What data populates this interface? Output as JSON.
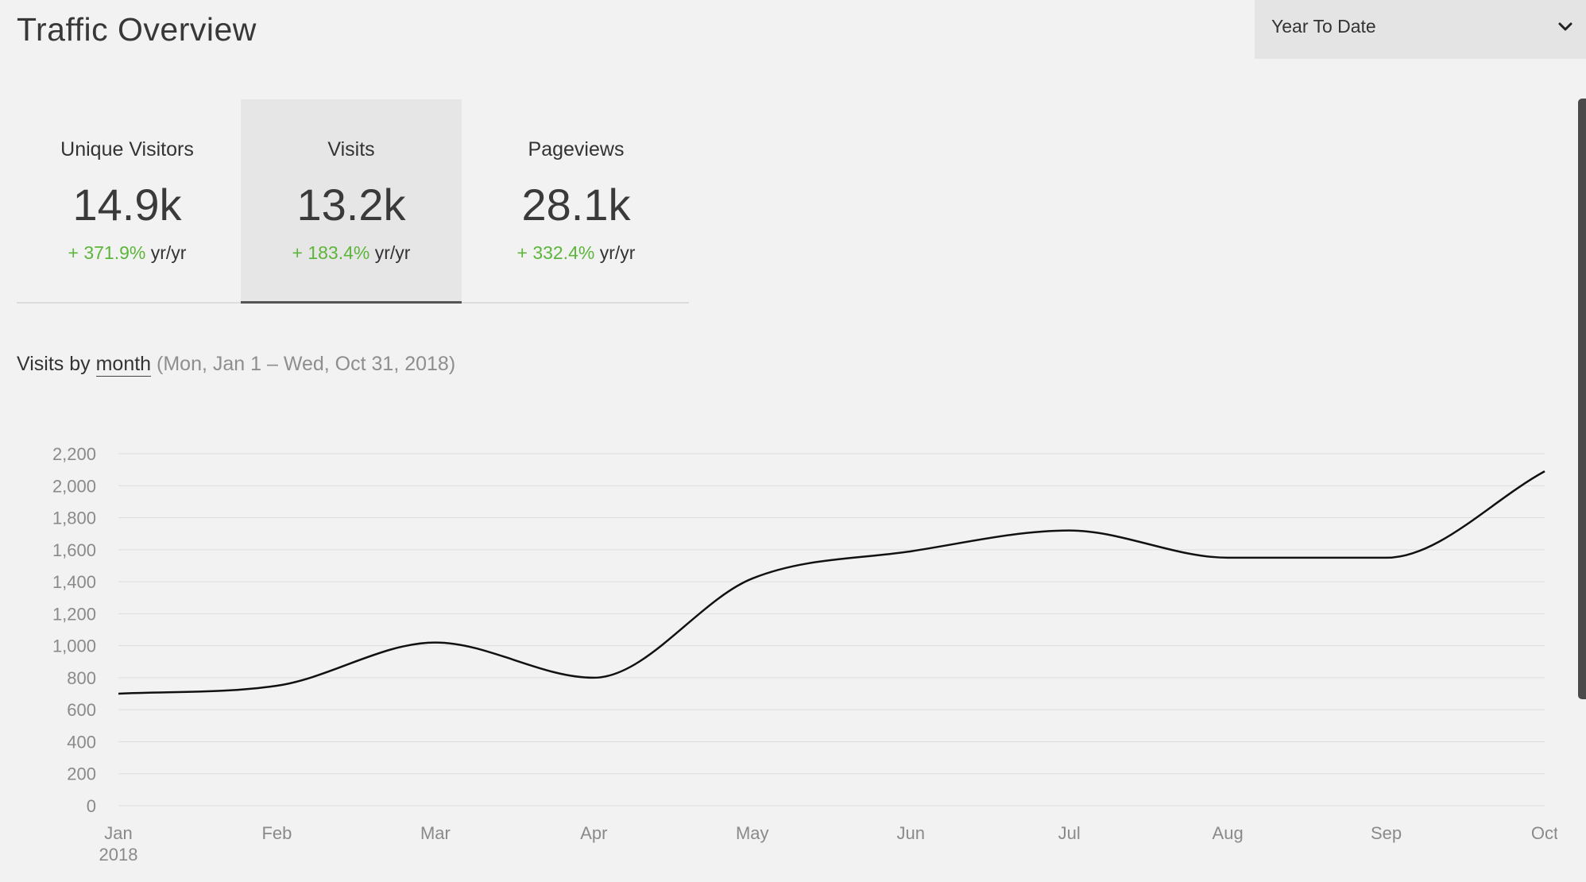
{
  "header": {
    "title": "Traffic Overview"
  },
  "range_select": {
    "value": "Year To Date",
    "icon": "chevron-down-icon"
  },
  "stats": [
    {
      "label": "Unique Visitors",
      "value": "14.9k",
      "change": "+ 371.9%",
      "change_suffix": "yr/yr",
      "active": false
    },
    {
      "label": "Visits",
      "value": "13.2k",
      "change": "+ 183.4%",
      "change_suffix": "yr/yr",
      "active": true
    },
    {
      "label": "Pageviews",
      "value": "28.1k",
      "change": "+ 332.4%",
      "change_suffix": "yr/yr",
      "active": false
    }
  ],
  "chart_heading": {
    "prefix": "Visits by",
    "interval": "month",
    "range": "(Mon, Jan 1 – Wed, Oct 31, 2018)"
  },
  "colors": {
    "positive": "#5db53c",
    "line": "#111111",
    "grid": "#dedede",
    "axis_text": "#8a8a8a"
  },
  "chart_data": {
    "type": "line",
    "title": "",
    "xlabel": "",
    "ylabel": "",
    "categories": [
      "Jan",
      "Feb",
      "Mar",
      "Apr",
      "May",
      "Jun",
      "Jul",
      "Aug",
      "Sep",
      "Oct"
    ],
    "year_label": "2018",
    "series": [
      {
        "values": [
          700,
          750,
          1020,
          800,
          1420,
          1590,
          1720,
          1550,
          1550,
          2090
        ]
      }
    ],
    "yticks": [
      "0",
      "200",
      "400",
      "600",
      "800",
      "1,000",
      "1,200",
      "1,400",
      "1,600",
      "1,800",
      "2,000",
      "2,200"
    ],
    "ylim": [
      0,
      2200
    ],
    "grid": true,
    "legend": "none"
  }
}
